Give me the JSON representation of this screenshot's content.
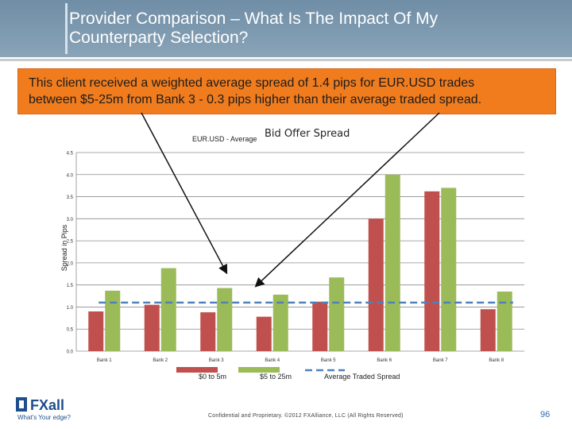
{
  "header": {
    "title_line1": "Provider Comparison – What Is The Impact Of My",
    "title_line2": "Counterparty Selection?"
  },
  "callout": {
    "line1": "This client received a weighted average spread of 1.4 pips for EUR.USD trades",
    "line2": "between $5-25m from Bank 3 - 0.3 pips higher than their average traded spread.",
    "color": "#f07c1e"
  },
  "chart_data": {
    "type": "bar",
    "title_prefix": "EUR.USD - Average",
    "title_main": "Bid Offer Spread",
    "ylabel": "Spread in Pips",
    "xlabel": "",
    "ylim": [
      0,
      4.5
    ],
    "yticks": [
      "0.0",
      "0.5",
      "1.0",
      "1.5",
      "2.0",
      "2.5",
      "3.0",
      "3.5",
      "4.0",
      "4.5"
    ],
    "categories": [
      "Bank 1",
      "Bank 2",
      "Bank 3",
      "Bank 4",
      "Bank 5",
      "Bank 6",
      "Bank 7",
      "Bank 8"
    ],
    "series": [
      {
        "name": "$0 to 5m",
        "color": "#c0504d",
        "values": [
          0.9,
          1.05,
          0.88,
          0.78,
          1.12,
          3.0,
          3.62,
          0.95
        ]
      },
      {
        "name": "$5 to 25m",
        "color": "#9bbb59",
        "values": [
          1.37,
          1.88,
          1.43,
          1.28,
          1.67,
          4.0,
          3.7,
          1.35
        ]
      }
    ],
    "reference_line": {
      "name": "Average Traded Spread",
      "value": 1.1,
      "color": "#4f81bd",
      "style": "dashed"
    },
    "legend_position": "bottom",
    "grid": true,
    "annotations": "two arrows from callout pointing to Bank 3 bar and Bank 6 bar"
  },
  "footer": {
    "note": "Confidential and Proprietary. ©2012 FXAlliance, LLC (All Rights Reserved)",
    "page": "96",
    "logo_name": "FXall",
    "tagline": "What's Your Edge?"
  }
}
